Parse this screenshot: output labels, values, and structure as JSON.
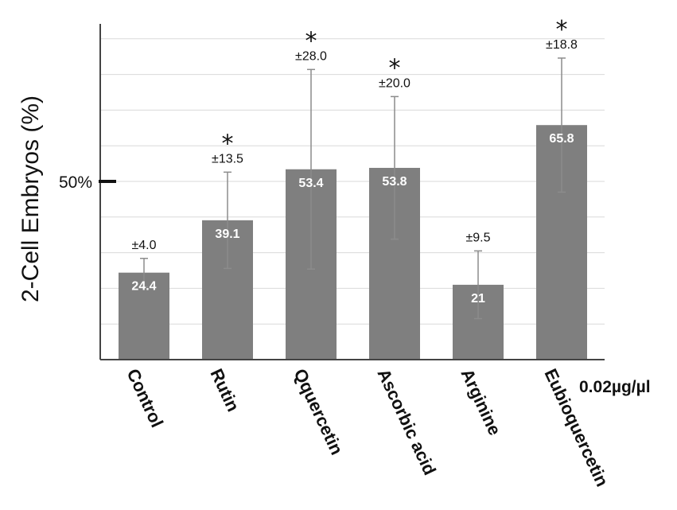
{
  "chart_data": {
    "type": "bar",
    "ylabel": "2-Cell Embryos (%)",
    "y_tick_label": "50%",
    "y_tick_value": 50,
    "ylim": [
      0,
      100
    ],
    "grid": true,
    "x_unit_label": "0.02µg/µl",
    "categories": [
      "Control",
      "Rutin",
      "Qquercetin",
      "Ascorbic acid",
      "Arginine",
      "Eubioquercetin"
    ],
    "values": [
      24.4,
      39.1,
      53.4,
      53.8,
      21,
      65.8
    ],
    "value_labels": [
      "24.4",
      "39.1",
      "53.4",
      "53.8",
      "21",
      "65.8"
    ],
    "errors": [
      4.0,
      13.5,
      28.0,
      20.0,
      9.5,
      18.8
    ],
    "error_labels": [
      "±4.0",
      "±13.5",
      "±28.0",
      "±20.0",
      "±9.5",
      "±18.8"
    ],
    "significant": [
      false,
      true,
      true,
      true,
      false,
      true
    ],
    "significance_marker": "*",
    "colors": {
      "bar": "#7f7f7f",
      "error": "#8c8c8c",
      "grid": "#d9d9d9",
      "axis": "#444444"
    }
  }
}
